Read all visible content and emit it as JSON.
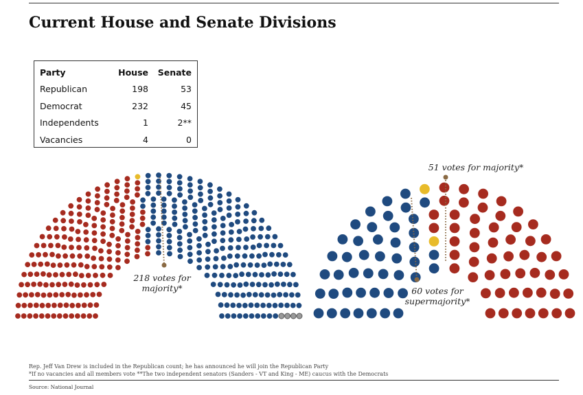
{
  "title": "Current House and Senate Divisions",
  "table": {
    "headers": [
      "Party",
      "House",
      "Senate"
    ],
    "rows": [
      {
        "party": "Republican",
        "house": "198",
        "senate": "53"
      },
      {
        "party": "Democrat",
        "house": "232",
        "senate": "45"
      },
      {
        "party": "Independents",
        "house": "1",
        "senate": "2**"
      },
      {
        "party": "Vacancies",
        "house": "4",
        "senate": "0"
      }
    ]
  },
  "colors": {
    "republican": "#a62b1f",
    "democrat": "#1f4a7f",
    "independent": "#e8bb2a",
    "vacancy": "#9a9a9a",
    "marker": "#8a6a44"
  },
  "chart_data": [
    {
      "type": "parliament",
      "chamber": "House",
      "seats": [
        {
          "party": "Republican",
          "count": 198
        },
        {
          "party": "Independents",
          "count": 1
        },
        {
          "party": "Democrat",
          "count": 232
        },
        {
          "party": "Vacancies",
          "count": 4
        }
      ],
      "threshold": 218,
      "annotation_line1": "218 votes for",
      "annotation_line2": "majority*"
    },
    {
      "type": "parliament",
      "chamber": "Senate",
      "seats": [
        {
          "party": "Democrat",
          "count": 45
        },
        {
          "party": "Independents",
          "count": 2
        },
        {
          "party": "Republican",
          "count": 53
        }
      ],
      "thresholds": [
        {
          "value": 51,
          "label": "51 votes for majority*"
        },
        {
          "value": 60,
          "label_line1": "60 votes for",
          "label_line2": "supermajority*"
        }
      ]
    }
  ],
  "notes": {
    "line1": "Rep. Jeff Van Drew is included in the Republican count; he has announced he will join the Republican Party",
    "line2": "*If no vacancies and all members vote  **The two independent senators (Sanders - VT and King - ME) caucus with the Democrats",
    "source": "Source: National Journal"
  }
}
